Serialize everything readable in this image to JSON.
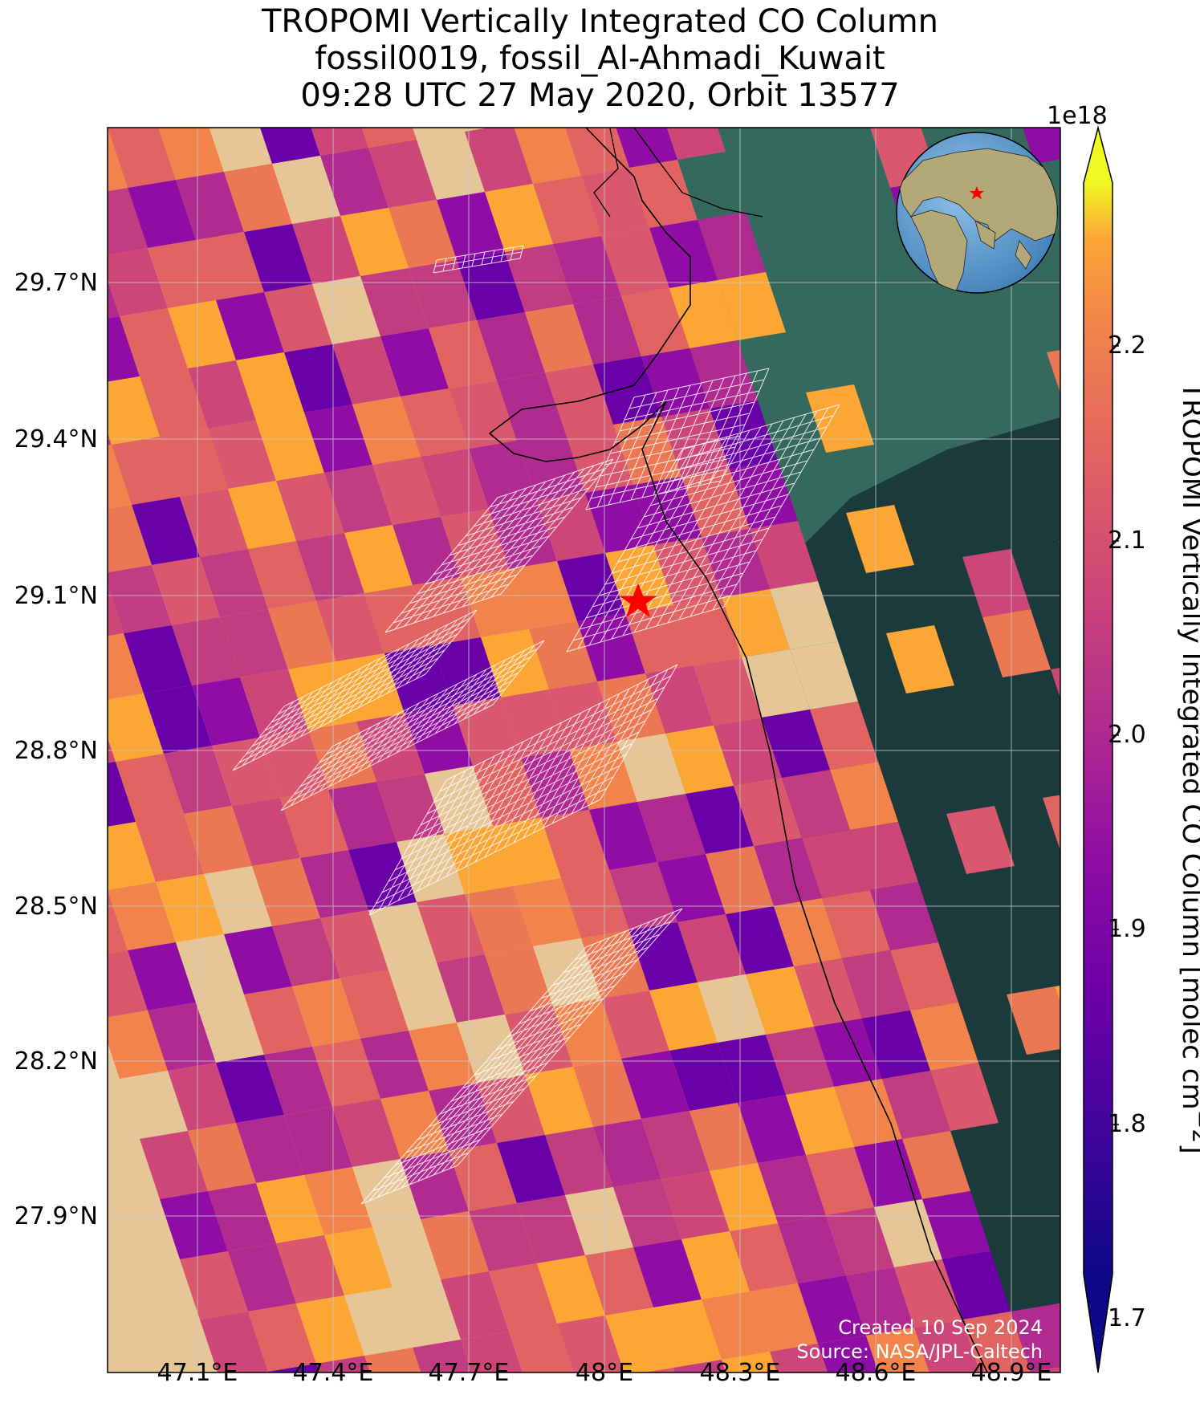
{
  "title": {
    "line1": "TROPOMI Vertically Integrated CO Column",
    "line2": "fossil0019, fossil_Al-Ahmadi_Kuwait",
    "line3": "09:28 UTC 27 May 2020, Orbit 13577"
  },
  "map": {
    "lat_ticks": [
      "29.7°N",
      "29.4°N",
      "29.1°N",
      "28.8°N",
      "28.5°N",
      "28.2°N",
      "27.9°N"
    ],
    "lon_ticks": [
      "47.1°E",
      "47.4°E",
      "47.7°E",
      "48°E",
      "48.3°E",
      "48.6°E",
      "48.9°E"
    ],
    "site_marker": {
      "name": "fossil_Al-Ahmadi_Kuwait",
      "color": "#ff0000",
      "icon": "star-icon"
    },
    "inset_globe": {
      "icon": "globe-icon",
      "marker_color": "#ff0000"
    },
    "credits": {
      "created": "Created 10 Sep 2024",
      "source": "Source: NASA/JPL-Caltech"
    },
    "colormap": "plasma",
    "overlay_grid_color": "#ffffff"
  },
  "colorbar": {
    "multiplier": "1e18",
    "label": "TROPOMI Vertically Integrated CO Column [molec cm",
    "label_sup": "−2",
    "label_end": "]",
    "ticks": [
      "2.2",
      "2.1",
      "2.0",
      "1.9",
      "1.8",
      "1.7"
    ],
    "range": [
      1.7,
      2.25
    ],
    "extend": "both"
  }
}
